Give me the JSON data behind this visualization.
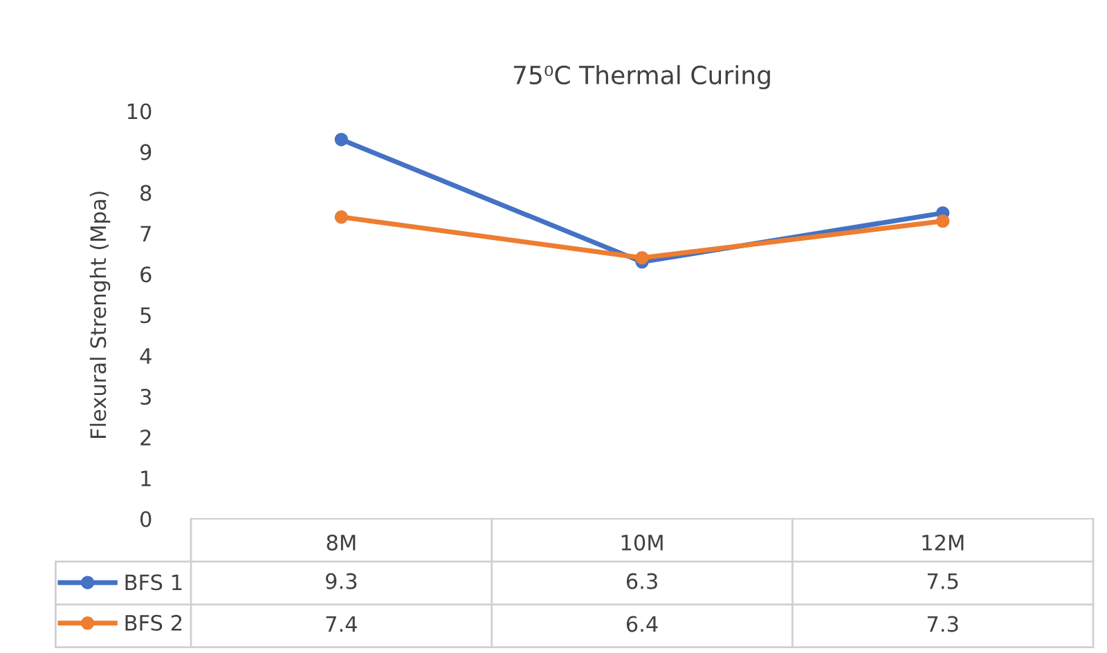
{
  "chart_data": {
    "type": "line",
    "title": "75⁰C Thermal Curing",
    "ylabel": "Flexural Strenght (Mpa)",
    "categories": [
      "8M",
      "10M",
      "12M"
    ],
    "series": [
      {
        "name": "BFS 1",
        "color": "#4472c4",
        "values": [
          9.3,
          6.3,
          7.5
        ]
      },
      {
        "name": "BFS 2",
        "color": "#ed7d31",
        "values": [
          7.4,
          6.4,
          7.3
        ]
      }
    ],
    "ylim": [
      0,
      10
    ],
    "yticks": [
      0,
      1,
      2,
      3,
      4,
      5,
      6,
      7,
      8,
      9,
      10
    ],
    "grid": false,
    "marker": "circle",
    "line_style": "solid",
    "legend": "bottom",
    "data_labels": true
  }
}
